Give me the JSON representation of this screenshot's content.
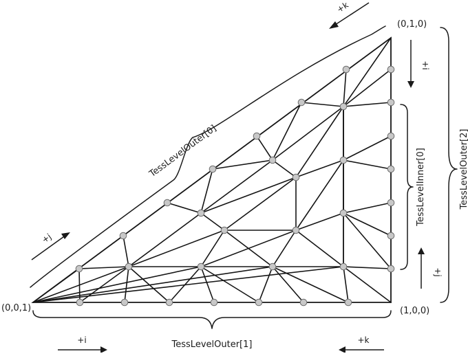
{
  "corners": {
    "bottom_left": "(0,0,1)",
    "bottom_right": "(1,0,0)",
    "top": "(0,1,0)"
  },
  "braces": {
    "hypotenuse": "TessLevelOuter[0]",
    "bottom": "TessLevelOuter[1]",
    "right_inner": "TessLevelInner[0]",
    "right_outer": "TessLevelOuter[2]"
  },
  "arrows": {
    "top_k": "+k",
    "down_i": "+i",
    "diag_j": "+j",
    "up_j": "+j",
    "bottom_i": "+i",
    "bottom_k": "+k"
  },
  "colors": {
    "line": "#151515",
    "vertex_fill": "#c8c8c8",
    "vertex_stroke": "#6e6e6e"
  }
}
